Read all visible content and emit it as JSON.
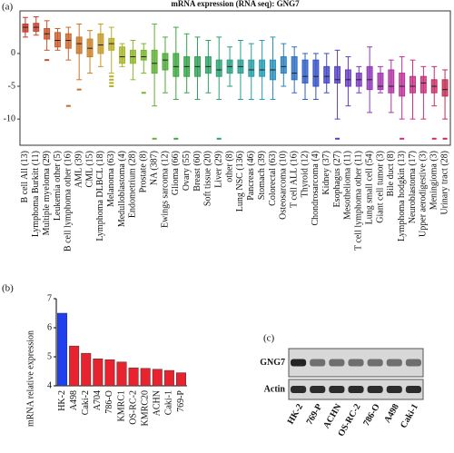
{
  "chart_data": [
    {
      "type": "box",
      "label": "(a)",
      "title": "mRNA expression (RNA seq): GNG7",
      "categories": [
        "B cell All (13)",
        "Lymphoma Burkitt (11)",
        "Multiple myeloma (29)",
        "Leukemia other (5)",
        "B cell lymphoma other (16)",
        "AML (39)",
        "CML (15)",
        "Lymphoma DLBCL (18)",
        "Melanoma (63)",
        "Medulloblastoma (4)",
        "Endometrium (28)",
        "Prostate (8)",
        "NA (387)",
        "Ewings sarcoma (12)",
        "Glioma (66)",
        "Ovary (55)",
        "Breast (60)",
        "Soft tissue (20)",
        "Liver (29)",
        "other (8)",
        "Lung NSC (136)",
        "Pancreas (46)",
        "Stomach (39)",
        "Colorectal (63)",
        "Osteosarcoma (10)",
        "T cell ALL (16)",
        "Thyroid (12)",
        "Chondrosarcoma (4)",
        "Kidney (37)",
        "Esophagus (27)",
        "Mesothelioma (11)",
        "T cell lymphoma other (11)",
        "Lung small cell (54)",
        "Giant cell tumor (3)",
        "Bile duct (8)",
        "Lymphoma hodgkin (13)",
        "Neuroblastoma (17)",
        "Upper aerodigestive (3)",
        "Meningioma (3)",
        "Urinary tract (28)"
      ],
      "stats": {
        "min": [
          2.5,
          2.8,
          0.5,
          0.5,
          -1,
          -4,
          -3,
          -2,
          -3,
          -2,
          -4,
          -3,
          -8,
          -6,
          -7,
          -6,
          -7,
          -6,
          -7,
          -5,
          -7,
          -7,
          -7,
          -7,
          -5,
          -6,
          -7,
          -7,
          -6,
          -10,
          -8,
          -6,
          -9,
          -6,
          -9,
          -10,
          -10,
          -10,
          -8,
          -10
        ],
        "q1": [
          3.3,
          3.4,
          2.2,
          1,
          0.8,
          0,
          -0.5,
          0,
          0.5,
          -1.5,
          -1.5,
          -1,
          -3,
          -2.5,
          -3.5,
          -3.5,
          -3.5,
          -3,
          -3.5,
          -3,
          -3,
          -3.5,
          -3.5,
          -4,
          -3,
          -4,
          -4.5,
          -5,
          -4.5,
          -4.5,
          -5,
          -5,
          -5.5,
          -5.5,
          -6,
          -6.5,
          -6,
          -6,
          -6,
          -6.5
        ],
        "median": [
          4,
          4,
          3,
          2,
          2,
          1.5,
          0.8,
          1.3,
          1.5,
          -0.5,
          -0.5,
          -0.5,
          -1.5,
          -1,
          -2,
          -2,
          -2,
          -2,
          -2.5,
          -2,
          -2,
          -2.5,
          -2.5,
          -2.5,
          -2,
          -3,
          -3.5,
          -3.5,
          -3.5,
          -4,
          -4,
          -4,
          -4,
          -5,
          -5,
          -5,
          -5,
          -4.5,
          -5,
          -5.5
        ],
        "q3": [
          4.5,
          4.6,
          3.8,
          3.2,
          3,
          2.5,
          2.2,
          3,
          2.3,
          1,
          0.5,
          0.5,
          0.5,
          0,
          0,
          -0.5,
          -0.5,
          -0.5,
          -1,
          -1,
          -1,
          -1,
          -1,
          -1,
          -0.5,
          -0.5,
          -1,
          -1,
          -2,
          -2,
          -2.5,
          -3,
          -2,
          -3,
          -2.5,
          -3,
          -3.5,
          -3.5,
          -4,
          -4
        ],
        "max": [
          5.5,
          5.6,
          5,
          3.8,
          4,
          4.5,
          3.5,
          4.5,
          4,
          1.5,
          2,
          1.5,
          4.5,
          2.5,
          4,
          3,
          2.5,
          2,
          2.5,
          1,
          2,
          1.5,
          2,
          2.5,
          1.5,
          1,
          0,
          0,
          0,
          0.5,
          -0.5,
          -2,
          1,
          -2,
          -1,
          -0.5,
          -1,
          -2,
          -2,
          -2.5
        ]
      },
      "outliers": [
        [],
        [],
        [
          -1
        ],
        [],
        [
          -8
        ],
        [
          -5.5
        ],
        [],
        [],
        [
          -3.5,
          -4,
          -4.5,
          -5
        ],
        [],
        [],
        [
          -6
        ],
        [
          -13
        ],
        [],
        [
          -13
        ],
        [],
        [],
        [],
        [
          -13
        ],
        [],
        [],
        [],
        [],
        [],
        [],
        [],
        [],
        [],
        [],
        [
          -13
        ],
        [],
        [],
        [],
        [],
        [],
        [
          -13
        ],
        [],
        [],
        [
          -13
        ],
        [
          -13
        ]
      ],
      "colors": [
        "#c0392b",
        "#c8422a",
        "#c9502a",
        "#c95c2a",
        "#c8662b",
        "#c8742a",
        "#c8822a",
        "#c49a2a",
        "#b8ae2a",
        "#a6b52c",
        "#8fb52e",
        "#78b530",
        "#5fb034",
        "#4caa38",
        "#3ea63e",
        "#34a347",
        "#2fa155",
        "#2ca063",
        "#2b9f72",
        "#2a9e82",
        "#299d92",
        "#289ca2",
        "#279bb2",
        "#2a90bc",
        "#2b7fc1",
        "#2c6ec4",
        "#2e5ec7",
        "#3550c8",
        "#4446c6",
        "#5540c3",
        "#673cbf",
        "#7a38bb",
        "#8d36b5",
        "#a034ad",
        "#b033a2",
        "#bd3296",
        "#c53188",
        "#c8307a",
        "#c52f66",
        "#c02e50"
      ],
      "ylim": [
        -14,
        6.5
      ],
      "yticks": [
        0,
        -5,
        -10
      ]
    },
    {
      "type": "bar",
      "label": "(b)",
      "ylabel": "mRNA relative expression",
      "categories": [
        "HK-2",
        "A498",
        "Caki-2",
        "A704",
        "786-O",
        "KMRC1",
        "OS-RC-2",
        "KMRC20",
        "ACHN",
        "Caki-1",
        "769-P"
      ],
      "values": [
        6.5,
        5.37,
        5.12,
        4.93,
        4.9,
        4.82,
        4.62,
        4.6,
        4.57,
        4.53,
        4.45
      ],
      "colors": [
        "#1f3ff0",
        "#e8222e",
        "#e8222e",
        "#e8222e",
        "#e8222e",
        "#e8222e",
        "#e8222e",
        "#e8222e",
        "#e8222e",
        "#e8222e",
        "#e8222e"
      ],
      "ylim": [
        4,
        7
      ],
      "yticks": [
        4,
        5,
        6,
        7
      ]
    },
    {
      "type": "blot",
      "label": "(c)",
      "rows": [
        "GNG7",
        "Actin"
      ],
      "lanes": [
        "HK-2",
        "769-P",
        "ACHN",
        "OS-RC-2",
        "786-O",
        "A498",
        "Caki-1"
      ]
    }
  ]
}
